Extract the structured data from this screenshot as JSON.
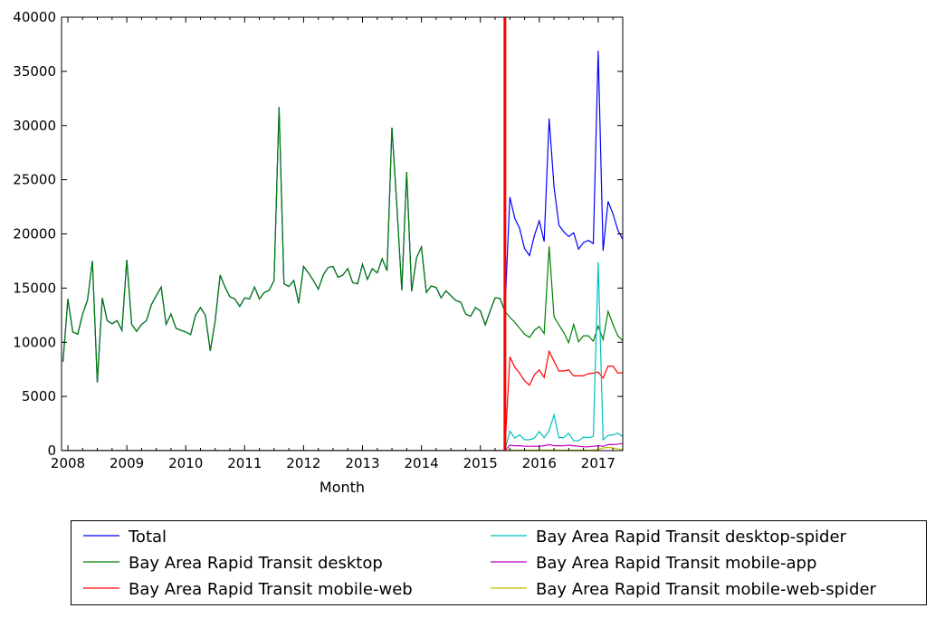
{
  "chart_data": {
    "type": "line",
    "title": "",
    "xlabel": "Month",
    "ylabel": "",
    "x_start": "2007-12",
    "frequency": "monthly",
    "xlim": [
      2007.89,
      2017.42
    ],
    "ylim": [
      0,
      40000
    ],
    "xticks": [
      2008,
      2009,
      2010,
      2011,
      2012,
      2013,
      2014,
      2015,
      2016,
      2017
    ],
    "xtick_labels": [
      "2008",
      "2009",
      "2010",
      "2011",
      "2012",
      "2013",
      "2014",
      "2015",
      "2016",
      "2017"
    ],
    "yticks": [
      0,
      5000,
      10000,
      15000,
      20000,
      25000,
      30000,
      35000,
      40000
    ],
    "ytick_labels": [
      "0",
      "5000",
      "10000",
      "15000",
      "20000",
      "25000",
      "30000",
      "35000",
      "40000"
    ],
    "grid": false,
    "legend_placement": "below plot, two columns",
    "vertical_line": {
      "x": "2015-06",
      "color": "#ff0000"
    },
    "series": [
      {
        "name": "Total",
        "color": "#0000ff",
        "values": [
          8200,
          14000,
          10950,
          10750,
          12600,
          13900,
          17500,
          6300,
          14100,
          12000,
          11700,
          12000,
          11100,
          17600,
          11650,
          11000,
          11650,
          12000,
          13450,
          14300,
          15100,
          11650,
          12600,
          11300,
          11100,
          10950,
          10700,
          12500,
          13200,
          12500,
          9200,
          12000,
          16200,
          15100,
          14200,
          14000,
          13300,
          14100,
          14000,
          15100,
          14000,
          14600,
          14800,
          15700,
          31700,
          15400,
          15150,
          15700,
          13600,
          17000,
          16400,
          15700,
          14900,
          16200,
          16900,
          17000,
          16000,
          16200,
          16800,
          15500,
          15400,
          17200,
          15800,
          16800,
          16400,
          17700,
          16600,
          29800,
          22500,
          14800,
          25700,
          14700,
          17800,
          18800,
          14600,
          15200,
          15050,
          14100,
          14750,
          14300,
          13850,
          13700,
          12600,
          12400,
          13200,
          12900,
          11600,
          12900,
          14100,
          14050,
          12850,
          23400,
          21450,
          20500,
          18650,
          18000,
          19850,
          21200,
          19300,
          30650,
          24350,
          20800,
          20200,
          19750,
          20100,
          18600,
          19200,
          19400,
          19100,
          36900,
          18450,
          23000,
          21850,
          20350,
          19500
        ]
      },
      {
        "name": "Bay Area Rapid Transit desktop",
        "color": "#008000",
        "values": [
          8200,
          14000,
          10950,
          10750,
          12600,
          13900,
          17500,
          6300,
          14100,
          12000,
          11700,
          12000,
          11100,
          17600,
          11650,
          11000,
          11650,
          12000,
          13450,
          14300,
          15100,
          11650,
          12600,
          11300,
          11100,
          10950,
          10700,
          12500,
          13200,
          12500,
          9200,
          12000,
          16200,
          15100,
          14200,
          14000,
          13300,
          14100,
          14000,
          15100,
          14000,
          14600,
          14800,
          15700,
          31700,
          15400,
          15150,
          15700,
          13600,
          17000,
          16400,
          15700,
          14900,
          16200,
          16900,
          17000,
          16000,
          16200,
          16800,
          15500,
          15400,
          17200,
          15800,
          16800,
          16400,
          17700,
          16600,
          29800,
          22500,
          14800,
          25700,
          14700,
          17800,
          18800,
          14600,
          15200,
          15050,
          14100,
          14750,
          14300,
          13850,
          13700,
          12600,
          12400,
          13200,
          12900,
          11600,
          12900,
          14100,
          14050,
          12850,
          12300,
          11850,
          11300,
          10750,
          10450,
          11100,
          11450,
          10800,
          18850,
          12350,
          11600,
          10900,
          9950,
          11650,
          10050,
          10600,
          10600,
          10100,
          11500,
          10250,
          12850,
          11650,
          10600,
          10150
        ]
      },
      {
        "name": "Bay Area Rapid Transit mobile-web",
        "color": "#ff0000",
        "values": [
          0,
          0,
          0,
          0,
          0,
          0,
          0,
          0,
          0,
          0,
          0,
          0,
          0,
          0,
          0,
          0,
          0,
          0,
          0,
          0,
          0,
          0,
          0,
          0,
          0,
          0,
          0,
          0,
          0,
          0,
          0,
          0,
          0,
          0,
          0,
          0,
          0,
          0,
          0,
          0,
          0,
          0,
          0,
          0,
          0,
          0,
          0,
          0,
          0,
          0,
          0,
          0,
          0,
          0,
          0,
          0,
          0,
          0,
          0,
          0,
          0,
          0,
          0,
          0,
          0,
          0,
          0,
          0,
          0,
          0,
          0,
          0,
          0,
          0,
          0,
          0,
          0,
          0,
          0,
          0,
          0,
          0,
          0,
          0,
          0,
          0,
          0,
          0,
          0,
          0,
          0,
          8650,
          7700,
          7150,
          6450,
          6050,
          7000,
          7450,
          6750,
          9150,
          8250,
          7350,
          7350,
          7450,
          6900,
          6900,
          6900,
          7100,
          7150,
          7250,
          6700,
          7800,
          7800,
          7150,
          7200
        ]
      },
      {
        "name": "Bay Area Rapid Transit desktop-spider",
        "color": "#00bfbf",
        "values": [
          0,
          0,
          0,
          0,
          0,
          0,
          0,
          0,
          0,
          0,
          0,
          0,
          0,
          0,
          0,
          0,
          0,
          0,
          0,
          0,
          0,
          0,
          0,
          0,
          0,
          0,
          0,
          0,
          0,
          0,
          0,
          0,
          0,
          0,
          0,
          0,
          0,
          0,
          0,
          0,
          0,
          0,
          0,
          0,
          0,
          0,
          0,
          0,
          0,
          0,
          0,
          0,
          0,
          0,
          0,
          0,
          0,
          0,
          0,
          0,
          0,
          0,
          0,
          0,
          0,
          0,
          0,
          0,
          0,
          0,
          0,
          0,
          0,
          0,
          0,
          0,
          0,
          0,
          0,
          0,
          0,
          0,
          0,
          0,
          0,
          0,
          0,
          0,
          0,
          0,
          0,
          1800,
          1150,
          1450,
          1000,
          1000,
          1150,
          1750,
          1200,
          1850,
          3300,
          1200,
          1200,
          1600,
          900,
          900,
          1250,
          1200,
          1300,
          17400,
          1000,
          1400,
          1450,
          1600,
          1300
        ]
      },
      {
        "name": "Bay Area Rapid Transit mobile-app",
        "color": "#bf00bf",
        "values": [
          0,
          0,
          0,
          0,
          0,
          0,
          0,
          0,
          0,
          0,
          0,
          0,
          0,
          0,
          0,
          0,
          0,
          0,
          0,
          0,
          0,
          0,
          0,
          0,
          0,
          0,
          0,
          0,
          0,
          0,
          0,
          0,
          0,
          0,
          0,
          0,
          0,
          0,
          0,
          0,
          0,
          0,
          0,
          0,
          0,
          0,
          0,
          0,
          0,
          0,
          0,
          0,
          0,
          0,
          0,
          0,
          0,
          0,
          0,
          0,
          0,
          0,
          0,
          0,
          0,
          0,
          0,
          0,
          0,
          0,
          0,
          0,
          0,
          0,
          0,
          0,
          0,
          0,
          0,
          0,
          0,
          0,
          0,
          0,
          0,
          0,
          0,
          0,
          0,
          0,
          0,
          500,
          450,
          450,
          400,
          400,
          400,
          400,
          450,
          550,
          450,
          450,
          450,
          500,
          450,
          400,
          350,
          350,
          400,
          450,
          400,
          550,
          550,
          600,
          650
        ]
      },
      {
        "name": "Bay Area Rapid Transit mobile-web-spider",
        "color": "#bfbf00",
        "values": [
          0,
          0,
          0,
          0,
          0,
          0,
          0,
          0,
          0,
          0,
          0,
          0,
          0,
          0,
          0,
          0,
          0,
          0,
          0,
          0,
          0,
          0,
          0,
          0,
          0,
          0,
          0,
          0,
          0,
          0,
          0,
          0,
          0,
          0,
          0,
          0,
          0,
          0,
          0,
          0,
          0,
          0,
          0,
          0,
          0,
          0,
          0,
          0,
          0,
          0,
          0,
          0,
          0,
          0,
          0,
          0,
          0,
          0,
          0,
          0,
          0,
          0,
          0,
          0,
          0,
          0,
          0,
          0,
          0,
          0,
          0,
          0,
          0,
          0,
          0,
          0,
          0,
          0,
          0,
          0,
          0,
          0,
          0,
          0,
          0,
          0,
          0,
          0,
          0,
          0,
          0,
          50,
          40,
          40,
          40,
          40,
          40,
          50,
          40,
          60,
          50,
          40,
          40,
          40,
          40,
          40,
          40,
          40,
          50,
          100,
          250,
          300,
          250,
          150,
          100
        ]
      }
    ]
  }
}
